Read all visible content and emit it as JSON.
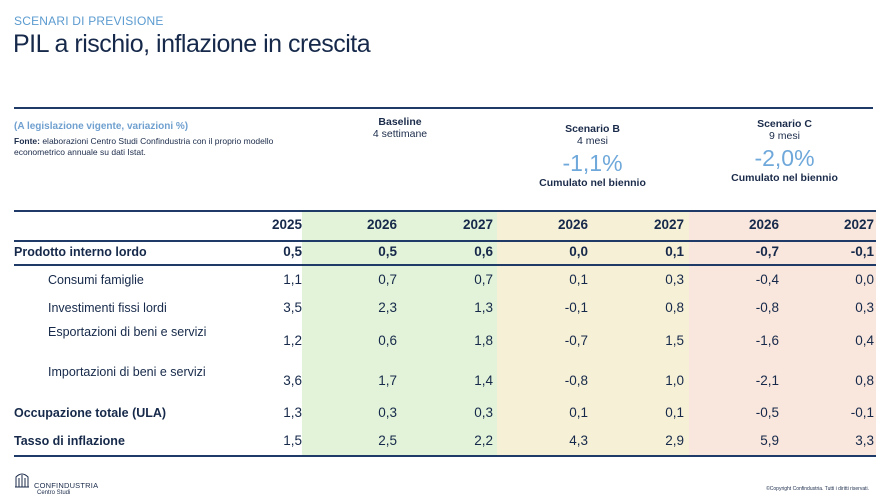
{
  "header": {
    "kicker": "SCENARI DI PREVISIONE",
    "title": "PIL a rischio, inflazione in crescita"
  },
  "notes": {
    "legislation": "(A legislazione vigente, variazioni %)",
    "source_label": "Fonte:",
    "source_text": " elaborazioni Centro Studi Confindustria con il proprio modello econometrico annuale su dati Istat."
  },
  "scenarios": {
    "baseline": {
      "name": "Baseline",
      "duration": "4 settimane"
    },
    "b": {
      "name": "Scenario B",
      "duration": "4 mesi",
      "cumulative": "-1,1%",
      "cumulative_label": "Cumulato nel biennio"
    },
    "c": {
      "name": "Scenario C",
      "duration": "9 mesi",
      "cumulative": "-2,0%",
      "cumulative_label": "Cumulato nel biennio"
    }
  },
  "table": {
    "years": [
      "2025",
      "2026",
      "2027",
      "2026",
      "2027",
      "2026",
      "2027"
    ],
    "rows": [
      {
        "label": "Prodotto interno lordo",
        "values": [
          "0,5",
          "0,5",
          "0,6",
          "0,0",
          "0,1",
          "-0,7",
          "-0,1"
        ]
      },
      {
        "label": "Consumi famiglie",
        "values": [
          "1,1",
          "0,7",
          "0,7",
          "0,1",
          "0,3",
          "-0,4",
          "0,0"
        ]
      },
      {
        "label": "Investimenti fissi lordi",
        "values": [
          "3,5",
          "2,3",
          "1,3",
          "-0,1",
          "0,8",
          "-0,8",
          "0,3"
        ]
      },
      {
        "label": "Esportazioni di beni e servizi",
        "values": [
          "1,2",
          "0,6",
          "1,8",
          "-0,7",
          "1,5",
          "-1,6",
          "0,4"
        ]
      },
      {
        "label": "Importazioni di beni e servizi",
        "values": [
          "3,6",
          "1,7",
          "1,4",
          "-0,8",
          "1,0",
          "-2,1",
          "0,8"
        ]
      },
      {
        "label": "Occupazione totale (ULA)",
        "values": [
          "1,3",
          "0,3",
          "0,3",
          "0,1",
          "0,1",
          "-0,5",
          "-0,1"
        ]
      },
      {
        "label": "Tasso di inflazione",
        "values": [
          "1,5",
          "2,5",
          "2,2",
          "4,3",
          "2,9",
          "5,9",
          "3,3"
        ]
      }
    ]
  },
  "footer": {
    "brand": "CONFINDUSTRIA",
    "brand_sub": "Centro Studi",
    "copyright": "©Copyright Confindustria. Tutti i diritti riservati."
  },
  "colors": {
    "baseline_band": "#e2f3d9",
    "scenario_b_band": "#f6f0d6",
    "scenario_c_band": "#f9e6dc",
    "accent": "#6fa8da",
    "navy": "#1f3a66"
  }
}
